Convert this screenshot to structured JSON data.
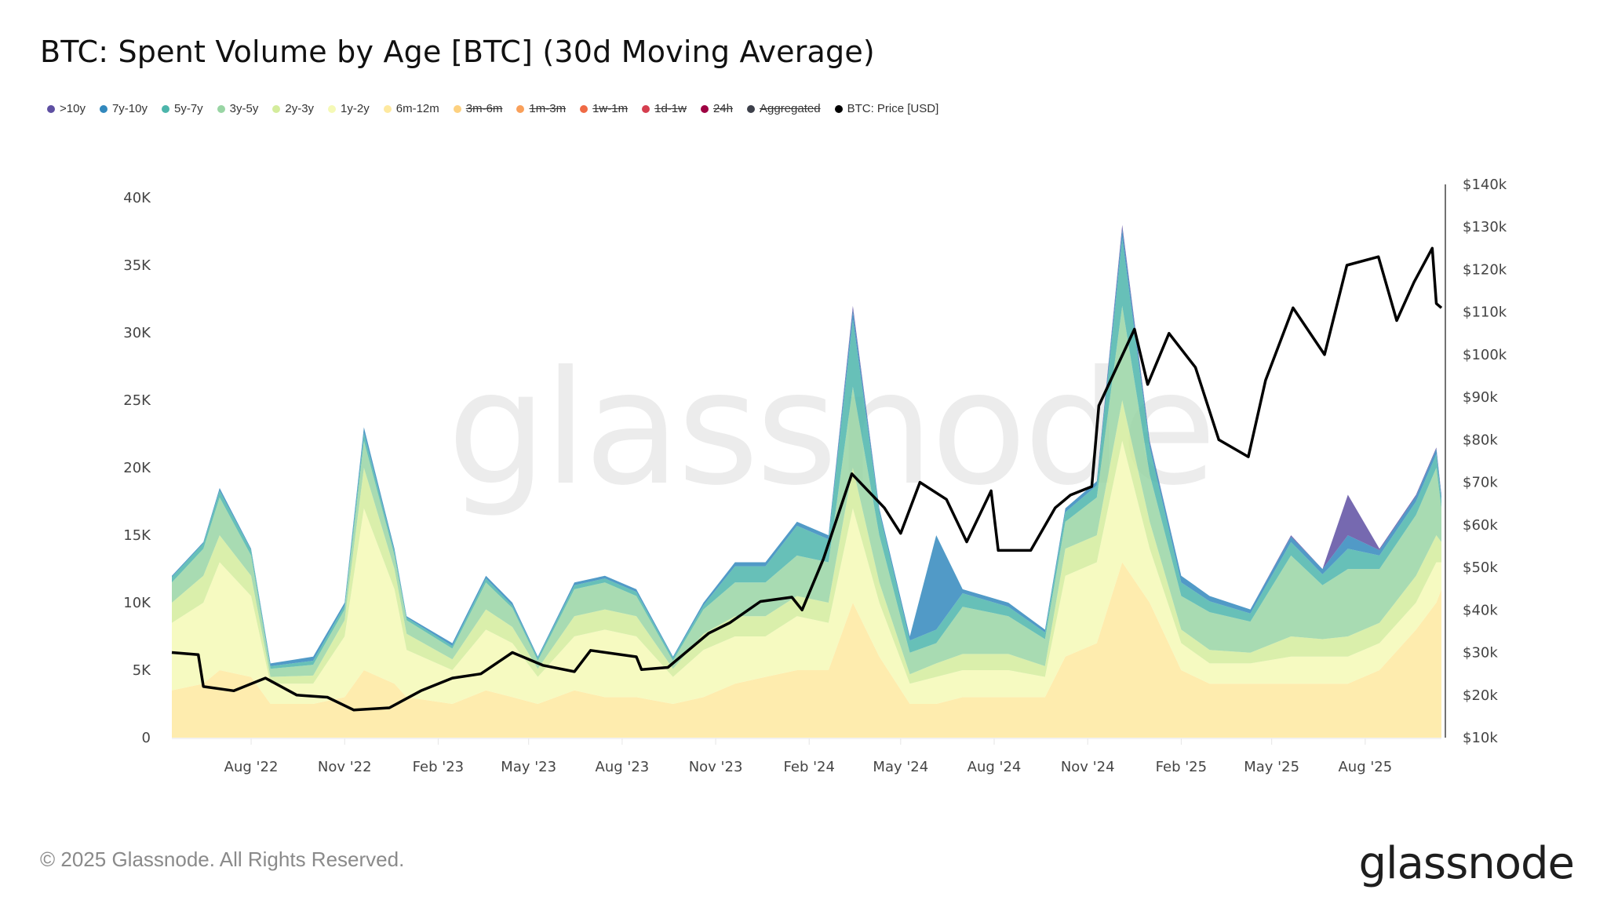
{
  "title": "BTC: Spent Volume by Age [BTC] (30d Moving Average)",
  "footer": {
    "copyright": "© 2025 Glassnode. All Rights Reserved.",
    "logo": "glassnode",
    "watermark": "glassnode"
  },
  "legend": [
    {
      "label": ">10y",
      "color": "#5e4fa2",
      "visible": true
    },
    {
      "label": "7y-10y",
      "color": "#3288bd",
      "visible": true
    },
    {
      "label": "5y-7y",
      "color": "#4cb5ab",
      "visible": true
    },
    {
      "label": "3y-5y",
      "color": "#99d5a4",
      "visible": true
    },
    {
      "label": "2y-3y",
      "color": "#d4ec9c",
      "visible": true
    },
    {
      "label": "1y-2y",
      "color": "#f5f9b6",
      "visible": true
    },
    {
      "label": "6m-12m",
      "color": "#fee9a0",
      "visible": true
    },
    {
      "label": "3m-6m",
      "color": "#fdd180",
      "visible": false
    },
    {
      "label": "1m-3m",
      "color": "#f9a05a",
      "visible": false
    },
    {
      "label": "1w-1m",
      "color": "#ef6a45",
      "visible": false
    },
    {
      "label": "1d-1w",
      "color": "#d53e4f",
      "visible": false
    },
    {
      "label": "24h",
      "color": "#9e0142",
      "visible": false
    },
    {
      "label": "Aggregated",
      "color": "#3d404a",
      "visible": false
    },
    {
      "label": "BTC: Price [USD]",
      "color": "#000000",
      "visible": true
    }
  ],
  "chart_data": {
    "type": "area",
    "stacked": true,
    "title": "BTC: Spent Volume by Age [BTC] (30d Moving Average)",
    "x_range": [
      "2022-05-15",
      "2025-10-15"
    ],
    "y_left": {
      "range": [
        0,
        41000
      ],
      "ticks": [
        0,
        5000,
        10000,
        15000,
        20000,
        25000,
        30000,
        35000,
        40000
      ],
      "tick_labels": [
        "0",
        "5K",
        "10K",
        "15K",
        "20K",
        "25K",
        "30K",
        "35K",
        "40K"
      ]
    },
    "y_right": {
      "range": [
        10000,
        140000
      ],
      "ticks": [
        10000,
        20000,
        30000,
        40000,
        50000,
        60000,
        70000,
        80000,
        90000,
        100000,
        110000,
        120000,
        130000,
        140000
      ],
      "tick_labels": [
        "$10k",
        "$20k",
        "$30k",
        "$40k",
        "$50k",
        "$60k",
        "$70k",
        "$80k",
        "$90k",
        "$100k",
        "$110k",
        "$120k",
        "$130k",
        "$140k"
      ]
    },
    "x_ticks": [
      {
        "date": "2022-08-01",
        "label": "Aug '22"
      },
      {
        "date": "2022-11-01",
        "label": "Nov '22"
      },
      {
        "date": "2023-02-01",
        "label": "Feb '23"
      },
      {
        "date": "2023-05-01",
        "label": "May '23"
      },
      {
        "date": "2023-08-01",
        "label": "Aug '23"
      },
      {
        "date": "2023-11-01",
        "label": "Nov '23"
      },
      {
        "date": "2024-02-01",
        "label": "Feb '24"
      },
      {
        "date": "2024-05-01",
        "label": "May '24"
      },
      {
        "date": "2024-08-01",
        "label": "Aug '24"
      },
      {
        "date": "2024-11-01",
        "label": "Nov '24"
      },
      {
        "date": "2025-02-01",
        "label": "Feb '25"
      },
      {
        "date": "2025-05-01",
        "label": "May '25"
      },
      {
        "date": "2025-08-01",
        "label": "Aug '25"
      }
    ],
    "grid": false,
    "legend_placement": "top-left",
    "dates": [
      "2022-05-15",
      "2022-06-15",
      "2022-07-01",
      "2022-08-01",
      "2022-08-20",
      "2022-10-01",
      "2022-11-01",
      "2022-11-20",
      "2022-12-20",
      "2023-01-01",
      "2023-02-15",
      "2023-03-20",
      "2023-04-15",
      "2023-05-10",
      "2023-06-15",
      "2023-07-15",
      "2023-08-15",
      "2023-09-20",
      "2023-10-20",
      "2023-11-20",
      "2023-12-20",
      "2024-01-20",
      "2024-02-20",
      "2024-03-15",
      "2024-04-10",
      "2024-05-10",
      "2024-06-05",
      "2024-07-01",
      "2024-08-15",
      "2024-09-20",
      "2024-10-10",
      "2024-11-10",
      "2024-12-05",
      "2025-01-01",
      "2025-02-01",
      "2025-03-01",
      "2025-04-10",
      "2025-05-20",
      "2025-06-20",
      "2025-07-15",
      "2025-08-15",
      "2025-09-20",
      "2025-10-10",
      "2025-10-15"
    ],
    "series": [
      {
        "name": "6m-12m",
        "values": [
          3500,
          4000,
          5000,
          4500,
          2500,
          2500,
          3000,
          5000,
          4000,
          3000,
          2500,
          3500,
          3000,
          2500,
          3500,
          3000,
          3000,
          2500,
          3000,
          4000,
          4500,
          5000,
          5000,
          10000,
          6000,
          2500,
          2500,
          3000,
          3000,
          3000,
          6000,
          7000,
          13000,
          10000,
          5000,
          4000,
          4000,
          4000,
          4000,
          4000,
          5000,
          8000,
          10000,
          11000
        ]
      },
      {
        "name": "1y-2y",
        "values": [
          5000,
          6000,
          8000,
          6000,
          1500,
          1500,
          4500,
          12000,
          7000,
          3500,
          2500,
          4500,
          4000,
          2000,
          4000,
          5000,
          4500,
          2000,
          3500,
          3500,
          3000,
          4000,
          3500,
          7000,
          4000,
          1500,
          2000,
          2000,
          2000,
          1500,
          6000,
          6000,
          9000,
          4000,
          2000,
          1500,
          1500,
          2000,
          2000,
          2000,
          2000,
          2000,
          3000,
          2000
        ]
      },
      {
        "name": "2y-3y",
        "values": [
          1500,
          2000,
          2000,
          1500,
          500,
          600,
          1200,
          3000,
          1500,
          1200,
          800,
          1500,
          1200,
          600,
          1500,
          1500,
          1500,
          600,
          1200,
          1500,
          1500,
          1500,
          1500,
          3000,
          1500,
          700,
          1000,
          1200,
          1200,
          800,
          2000,
          2000,
          3000,
          2000,
          1000,
          1000,
          800,
          1500,
          1300,
          1500,
          1500,
          2000,
          2000,
          1500
        ]
      },
      {
        "name": "3y-5y",
        "values": [
          1500,
          2000,
          2800,
          1500,
          600,
          800,
          800,
          2000,
          1000,
          1000,
          800,
          2000,
          1400,
          600,
          2000,
          2000,
          1500,
          600,
          1800,
          2500,
          2500,
          3000,
          3000,
          6000,
          3500,
          1600,
          1500,
          3500,
          2800,
          2000,
          2000,
          2800,
          7000,
          3500,
          2500,
          2800,
          2300,
          6000,
          4000,
          5000,
          4000,
          4500,
          5000,
          2500
        ]
      },
      {
        "name": "5y-7y",
        "values": [
          400,
          400,
          500,
          400,
          200,
          300,
          300,
          600,
          300,
          200,
          200,
          300,
          200,
          200,
          300,
          300,
          300,
          200,
          300,
          1200,
          1200,
          2200,
          1700,
          5000,
          1700,
          900,
          1000,
          1000,
          700,
          500,
          700,
          900,
          5000,
          2000,
          1000,
          800,
          600,
          1000,
          800,
          1500,
          1000,
          1000,
          1000,
          600
        ]
      },
      {
        "name": "7y-10y",
        "values": [
          100,
          100,
          200,
          100,
          200,
          300,
          200,
          400,
          200,
          100,
          200,
          200,
          200,
          100,
          200,
          200,
          200,
          100,
          200,
          300,
          300,
          300,
          300,
          700,
          300,
          300,
          7000,
          300,
          300,
          200,
          300,
          300,
          700,
          400,
          500,
          400,
          300,
          400,
          400,
          1000,
          400,
          400,
          400,
          300
        ]
      },
      {
        "name": ">10y",
        "values": [
          0,
          0,
          0,
          0,
          0,
          0,
          0,
          0,
          0,
          0,
          0,
          0,
          0,
          0,
          0,
          0,
          0,
          0,
          0,
          0,
          0,
          0,
          0,
          300,
          0,
          0,
          0,
          0,
          0,
          0,
          0,
          0,
          300,
          100,
          0,
          0,
          0,
          100,
          0,
          3000,
          100,
          100,
          100,
          100
        ]
      }
    ],
    "price": {
      "name": "BTC: Price [USD]",
      "dates": [
        "2022-05-15",
        "2022-06-10",
        "2022-06-15",
        "2022-07-15",
        "2022-08-15",
        "2022-09-15",
        "2022-10-15",
        "2022-11-10",
        "2022-12-15",
        "2023-01-15",
        "2023-02-15",
        "2023-03-15",
        "2023-04-15",
        "2023-05-15",
        "2023-06-15",
        "2023-07-01",
        "2023-08-15",
        "2023-08-20",
        "2023-09-15",
        "2023-10-25",
        "2023-11-15",
        "2023-12-15",
        "2024-01-15",
        "2024-01-25",
        "2024-02-15",
        "2024-03-14",
        "2024-04-15",
        "2024-05-01",
        "2024-05-20",
        "2024-06-15",
        "2024-07-05",
        "2024-07-29",
        "2024-08-05",
        "2024-09-06",
        "2024-09-30",
        "2024-10-15",
        "2024-11-05",
        "2024-11-12",
        "2024-12-17",
        "2024-12-30",
        "2025-01-20",
        "2025-02-15",
        "2025-03-10",
        "2025-04-08",
        "2025-04-25",
        "2025-05-22",
        "2025-06-22",
        "2025-07-14",
        "2025-08-14",
        "2025-09-01",
        "2025-09-18",
        "2025-10-06",
        "2025-10-10",
        "2025-10-15"
      ],
      "values": [
        30000,
        29500,
        22000,
        21000,
        24000,
        20000,
        19500,
        16500,
        17000,
        21000,
        24000,
        25000,
        30000,
        27000,
        25500,
        30500,
        29000,
        26000,
        26500,
        34500,
        37000,
        42000,
        43000,
        40000,
        52000,
        72000,
        64000,
        58000,
        70000,
        66000,
        56000,
        68000,
        54000,
        54000,
        64000,
        67000,
        69000,
        88000,
        106000,
        93000,
        105000,
        97000,
        80000,
        76000,
        94000,
        111000,
        100000,
        121000,
        123000,
        108000,
        117000,
        125000,
        112000,
        111000
      ]
    }
  }
}
